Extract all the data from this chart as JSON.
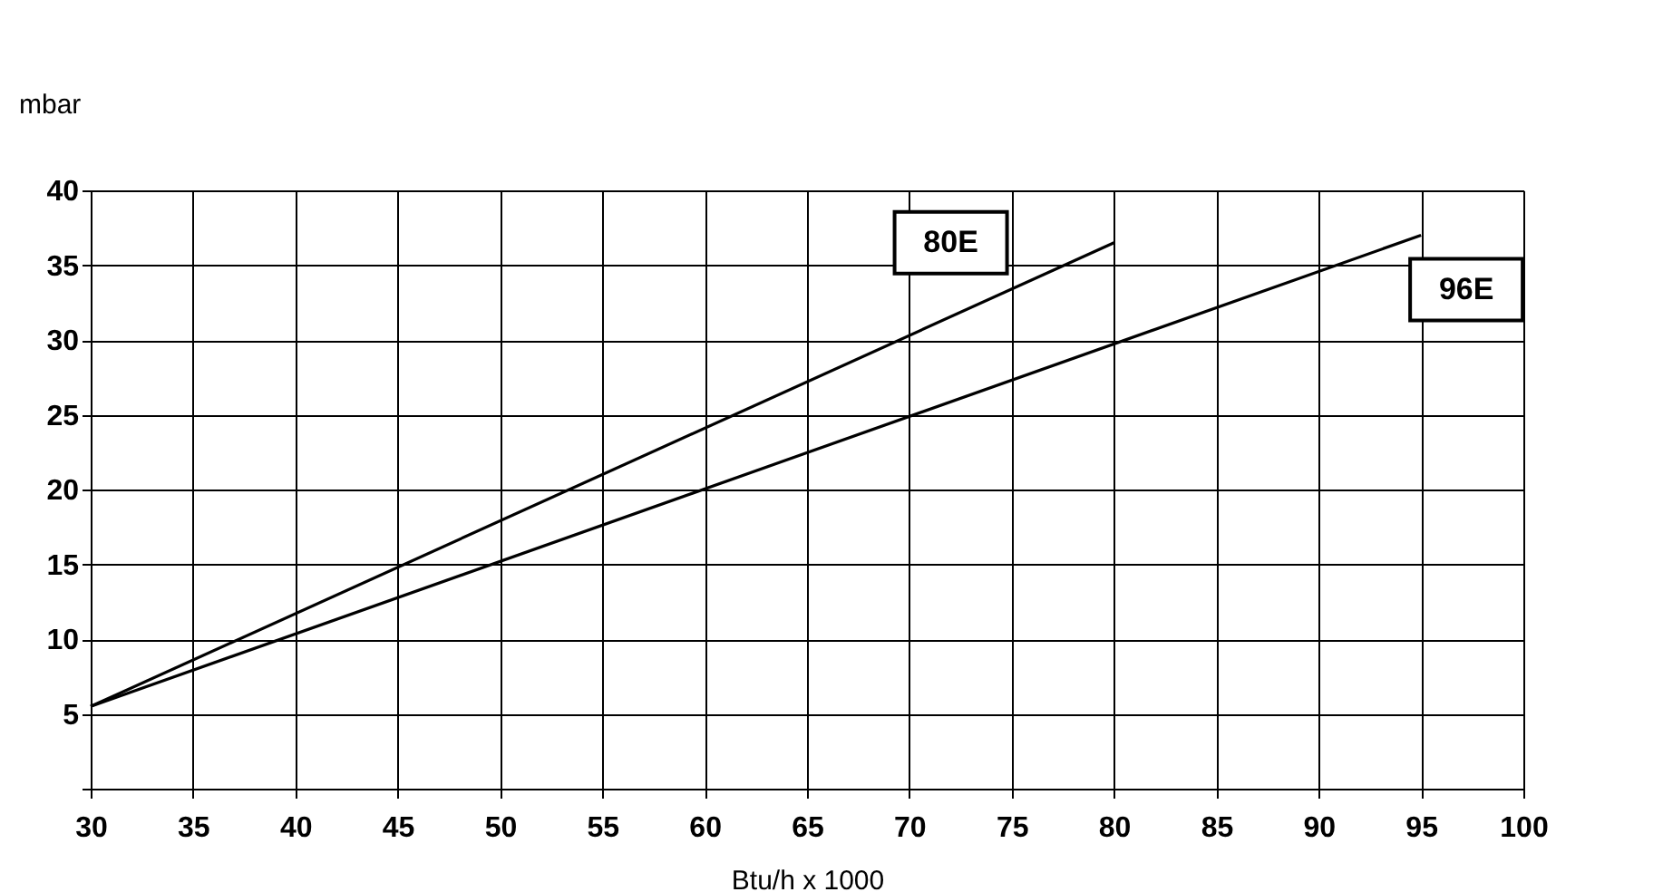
{
  "chart_data": {
    "type": "line",
    "xlabel": "Btu/h x 1000",
    "ylabel": "mbar",
    "series": [
      {
        "name": "80E",
        "color": "#000000",
        "x": [
          30,
          80
        ],
        "values": [
          5.5,
          36.5
        ]
      },
      {
        "name": "96E",
        "color": "#000000",
        "x": [
          30,
          95
        ],
        "values": [
          5.5,
          37
        ]
      }
    ],
    "xlim": [
      30,
      100
    ],
    "xticks": [
      30,
      35,
      40,
      45,
      50,
      55,
      60,
      65,
      70,
      75,
      80,
      85,
      90,
      95,
      100
    ],
    "ylim": [
      0,
      40
    ],
    "yticks": [
      {
        "value": 0,
        "label": null
      },
      5,
      10,
      15,
      20,
      25,
      30,
      35,
      40
    ],
    "grid": true,
    "legend": false,
    "marker": "none",
    "line_style": "solid"
  }
}
